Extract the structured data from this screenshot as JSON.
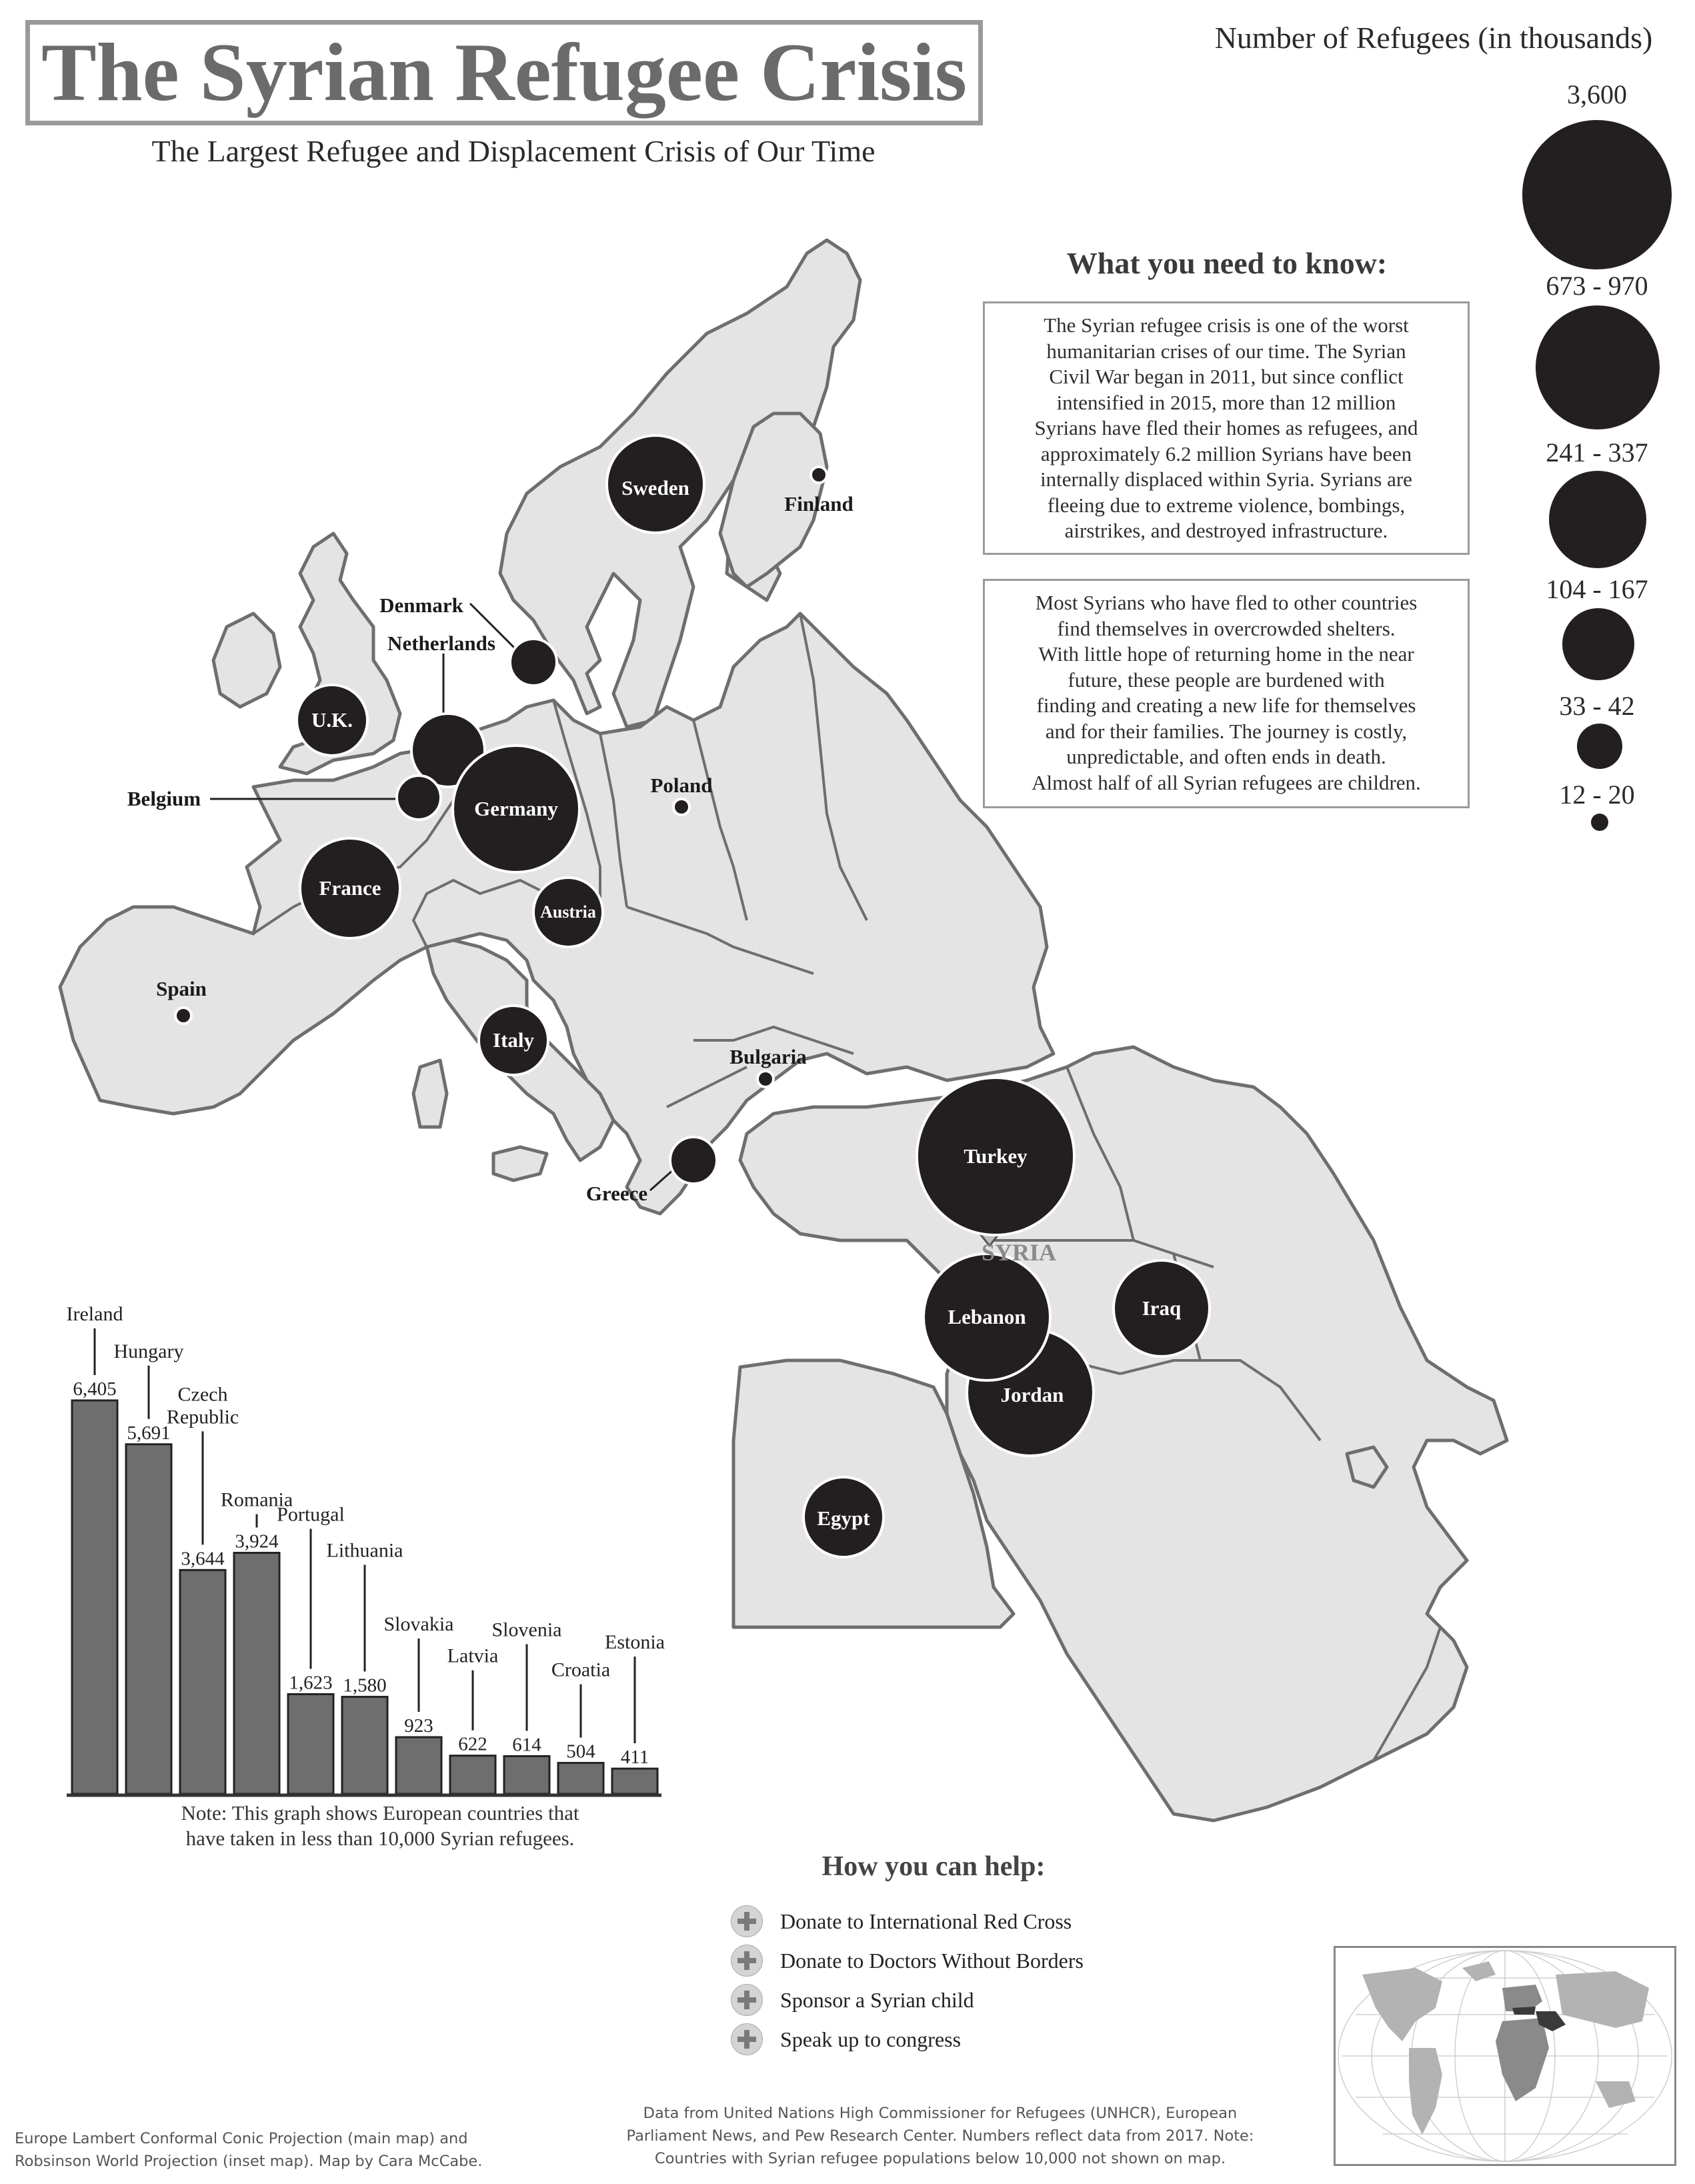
{
  "title": "The Syrian Refugee Crisis",
  "subtitle": "The Largest Refugee and Displacement Crisis of Our Time",
  "legend": {
    "title": "Number of Refugees (in thousands)",
    "classes": [
      "3,600",
      "673 - 970",
      "241 - 337",
      "104 - 167",
      "33 - 42",
      "12 - 20"
    ],
    "symbol_color": "#231f20"
  },
  "need_to_know": {
    "heading": "What you need to know:",
    "paragraph1_lines": [
      "The Syrian refugee crisis is one of the worst",
      "humanitarian crises of our time. The Syrian",
      "Civil War began in 2011, but since conflict",
      "intensified in 2015, more than 12 million",
      "Syrians have fled their homes as refugees, and",
      "approximately 6.2 million Syrians have been",
      "internally displaced within Syria. Syrians are",
      "fleeing due to extreme violence, bombings,",
      "airstrikes, and destroyed infrastructure."
    ],
    "paragraph2_lines": [
      "Most Syrians who have fled to other countries",
      "find themselves in overcrowded shelters.",
      "With little hope of returning home in the near",
      "future, these people are burdened with",
      "finding and creating a new life for themselves",
      "and for their families. The journey is costly,",
      "unpredictable, and often ends in death.",
      "Almost half of all Syrian refugees are children."
    ]
  },
  "map": {
    "land_color": "#e4e4e4",
    "border_color": "#6e6e6e",
    "origin_label": "SYRIA",
    "countries": [
      {
        "name": "Sweden",
        "class": "104 - 167"
      },
      {
        "name": "Finland",
        "class": "12 - 20"
      },
      {
        "name": "Denmark",
        "class": "33 - 42"
      },
      {
        "name": "Netherlands",
        "class": "33 - 42"
      },
      {
        "name": "U.K.",
        "class": "33 - 42"
      },
      {
        "name": "Belgium",
        "class": "12 - 20"
      },
      {
        "name": "Germany",
        "class": "673 - 970"
      },
      {
        "name": "Poland",
        "class": "12 - 20"
      },
      {
        "name": "France",
        "class": "104 - 167"
      },
      {
        "name": "Austria",
        "class": "33 - 42"
      },
      {
        "name": "Spain",
        "class": "12 - 20"
      },
      {
        "name": "Italy",
        "class": "33 - 42"
      },
      {
        "name": "Bulgaria",
        "class": "12 - 20"
      },
      {
        "name": "Greece",
        "class": "12 - 20"
      },
      {
        "name": "Turkey",
        "class": "3,600"
      },
      {
        "name": "Lebanon",
        "class": "673 - 970"
      },
      {
        "name": "Jordan",
        "class": "673 - 970"
      },
      {
        "name": "Iraq",
        "class": "241 - 337"
      },
      {
        "name": "Egypt",
        "class": "104 - 167"
      }
    ]
  },
  "chart_data": {
    "type": "bar",
    "categories": [
      "Ireland",
      "Hungary",
      "Czech Republic",
      "Romania",
      "Portugal",
      "Lithuania",
      "Slovakia",
      "Latvia",
      "Slovenia",
      "Croatia",
      "Estonia"
    ],
    "values": [
      6405,
      5691,
      3644,
      3924,
      1623,
      1580,
      923,
      622,
      614,
      504,
      411
    ],
    "value_labels": [
      "6,405",
      "5,691",
      "3,644",
      "3,924",
      "1,623",
      "1,580",
      "923",
      "622",
      "614",
      "504",
      "411"
    ],
    "ylim": [
      0,
      6405
    ],
    "bar_color": "#6e6e6e",
    "note": [
      "Note: This graph shows European countries that",
      "have taken in less than 10,000 Syrian refugees."
    ]
  },
  "help": {
    "heading": "How you can help:",
    "items": [
      "Donate to International Red Cross",
      "Donate to Doctors Without Borders",
      "Sponsor a Syrian child",
      "Speak up to congress"
    ]
  },
  "footer": {
    "left": [
      "Europe Lambert Conformal Conic Projection (main map) and",
      "Robsinson World Projection (inset map). Map by Cara McCabe."
    ],
    "right": [
      "Data from United Nations High Commissioner for Refugees (UNHCR), European",
      "Parliament News, and Pew Research Center. Numbers reflect data from 2017. Note:",
      "Countries with Syrian refugee populations below 10,000 not shown on map."
    ]
  }
}
